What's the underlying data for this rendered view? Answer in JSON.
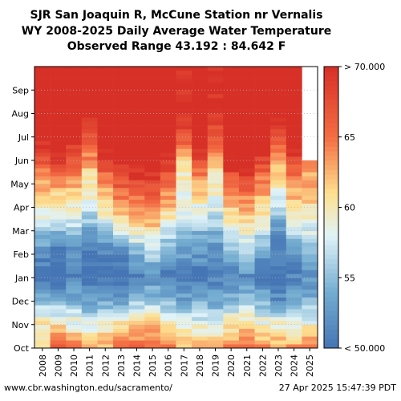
{
  "chart_data": {
    "type": "heatmap",
    "title_lines": [
      "SJR San Joaquin R, McCune Station nr Vernalis",
      "WY 2008-2025 Daily Average Water Temperature",
      "Observed Range 43.192 : 84.642 F"
    ],
    "x_categories": [
      "2008",
      "2009",
      "2010",
      "2011",
      "2012",
      "2013",
      "2014",
      "2015",
      "2016",
      "2017",
      "2018",
      "2019",
      "2020",
      "2021",
      "2022",
      "2023",
      "2024",
      "2025"
    ],
    "y_months": [
      "Oct",
      "Nov",
      "Dec",
      "Jan",
      "Feb",
      "Mar",
      "Apr",
      "May",
      "Jun",
      "Jul",
      "Aug",
      "Sep"
    ],
    "colorbar": {
      "min": 50,
      "max": 70,
      "tick_values": [
        50,
        55,
        60,
        65,
        70
      ],
      "tick_labels": [
        "< 50.000",
        "55",
        "60",
        "65",
        "> 70.000"
      ]
    },
    "monthly_mean_temperature_F": {
      "2008": [
        62,
        60,
        55,
        50,
        52,
        56,
        60,
        63,
        67,
        72,
        72,
        72
      ],
      "2009": [
        66,
        60,
        54,
        49,
        50,
        55,
        59,
        64,
        69,
        74,
        75,
        73
      ],
      "2010": [
        64,
        59,
        54,
        51,
        52,
        56,
        59,
        63,
        67,
        71,
        73,
        73
      ],
      "2011": [
        62,
        58,
        53,
        49,
        50,
        54,
        58,
        60,
        64,
        68,
        71,
        71
      ],
      "2012": [
        63,
        59,
        53,
        50,
        51,
        56,
        61,
        64,
        69,
        74,
        75,
        73
      ],
      "2013": [
        64,
        60,
        53,
        49,
        52,
        58,
        63,
        67,
        71,
        75,
        75,
        72
      ],
      "2014": [
        65,
        61,
        55,
        51,
        55,
        60,
        64,
        68,
        72,
        76,
        76,
        74
      ],
      "2015": [
        66,
        61,
        55,
        52,
        56,
        61,
        64,
        68,
        73,
        77,
        76,
        74
      ],
      "2016": [
        65,
        60,
        54,
        51,
        54,
        58,
        62,
        65,
        70,
        75,
        75,
        72
      ],
      "2017": [
        62,
        59,
        53,
        51,
        53,
        56,
        58,
        59,
        62,
        67,
        71,
        70
      ],
      "2018": [
        63,
        58,
        54,
        50,
        53,
        55,
        59,
        63,
        68,
        72,
        73,
        72
      ],
      "2019": [
        62,
        58,
        53,
        51,
        52,
        55,
        58,
        60,
        62,
        67,
        70,
        70
      ],
      "2020": [
        64,
        60,
        54,
        51,
        55,
        58,
        62,
        66,
        71,
        75,
        75,
        73
      ],
      "2021": [
        65,
        61,
        55,
        52,
        56,
        59,
        63,
        67,
        72,
        76,
        77,
        74
      ],
      "2022": [
        64,
        59,
        54,
        50,
        53,
        58,
        61,
        64,
        69,
        74,
        75,
        73
      ],
      "2023": [
        63,
        59,
        52,
        49,
        51,
        53,
        57,
        60,
        63,
        68,
        72,
        71
      ],
      "2024": [
        63,
        59,
        54,
        51,
        53,
        57,
        61,
        64,
        68,
        73,
        74,
        72
      ],
      "2025": [
        64,
        59,
        54,
        52,
        54,
        58,
        61,
        63
      ]
    },
    "grid": true
  },
  "footer": {
    "left": "www.cbr.washington.edu/sacramento/",
    "right": "27 Apr 2025 15:47:39 PDT"
  }
}
